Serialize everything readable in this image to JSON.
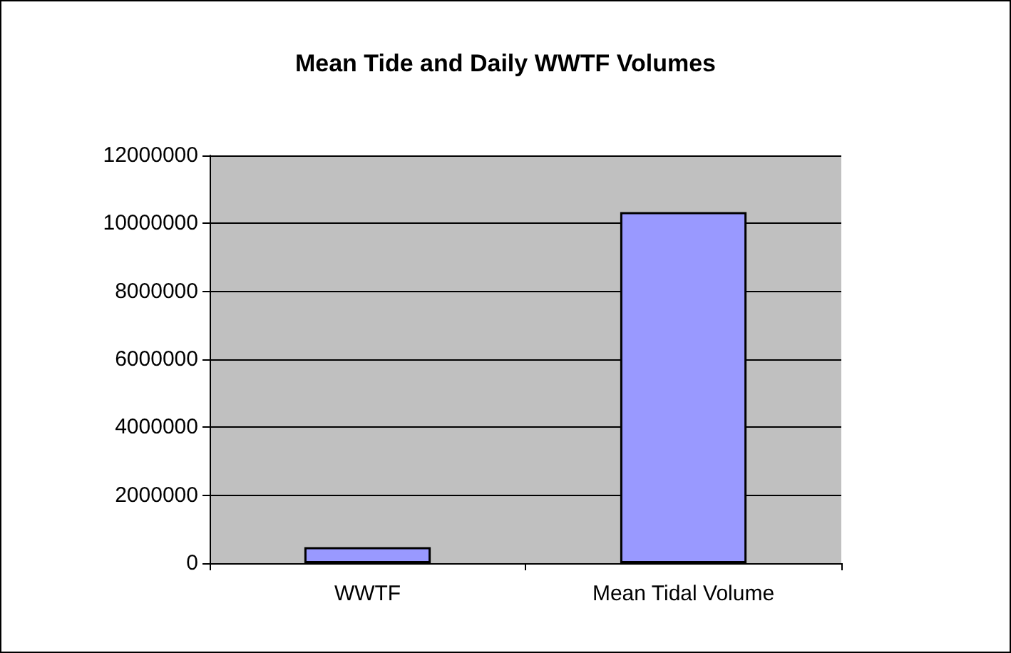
{
  "chart_data": {
    "type": "bar",
    "title": "Mean Tide and Daily WWTF Volumes",
    "categories": [
      "WWTF",
      "Mean Tidal Volume"
    ],
    "values": [
      470000,
      10330000
    ],
    "color": "#9999ff",
    "ylim": [
      0,
      12000000
    ],
    "yticks": [
      0,
      2000000,
      4000000,
      6000000,
      8000000,
      10000000,
      12000000
    ],
    "grid": "y"
  }
}
